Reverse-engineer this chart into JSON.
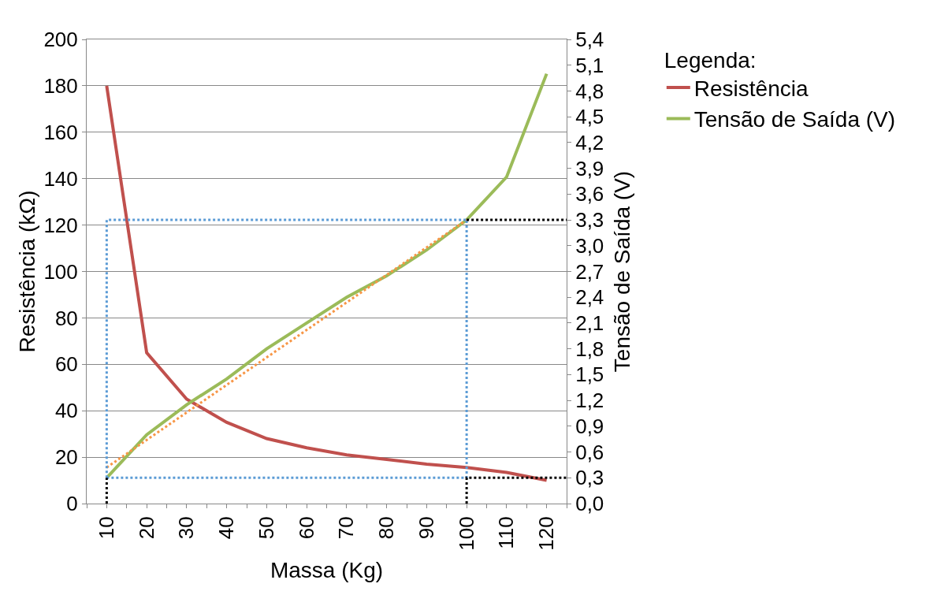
{
  "chart_data": {
    "type": "line",
    "xlabel": "Massa (Kg)",
    "ylabel": "Resistência (kΩ)",
    "y2label": "Tensão de Saída (V)",
    "legend_title": "Legenda:",
    "legend": "top right",
    "grid": "y",
    "marker": "none",
    "x": [
      10,
      20,
      30,
      40,
      50,
      60,
      70,
      80,
      90,
      100,
      110,
      120
    ],
    "xlim": [
      5,
      125
    ],
    "xticks": [
      {
        "value": 5,
        "label": null
      },
      10,
      {
        "value": 15,
        "label": null
      },
      20,
      {
        "value": 25,
        "label": null
      },
      30,
      {
        "value": 35,
        "label": null
      },
      40,
      {
        "value": 45,
        "label": null
      },
      50,
      {
        "value": 55,
        "label": null
      },
      60,
      {
        "value": 65,
        "label": null
      },
      70,
      {
        "value": 75,
        "label": null
      },
      80,
      {
        "value": 85,
        "label": null
      },
      90,
      {
        "value": 95,
        "label": null
      },
      100,
      {
        "value": 105,
        "label": null
      },
      110,
      {
        "value": 115,
        "label": null
      },
      120,
      {
        "value": 125,
        "label": null
      }
    ],
    "ylim": [
      0,
      200
    ],
    "yticks": [
      0,
      20,
      40,
      60,
      80,
      100,
      120,
      140,
      160,
      180,
      200
    ],
    "y2lim": [
      0,
      5.4
    ],
    "y2ticks": [
      {
        "value": 0,
        "label": "0,0"
      },
      {
        "value": 0.3,
        "label": "0,3"
      },
      {
        "value": 0.6,
        "label": "0,6"
      },
      {
        "value": 0.9,
        "label": "0,9"
      },
      {
        "value": 1.2,
        "label": "1,2"
      },
      {
        "value": 1.5,
        "label": "1,5"
      },
      {
        "value": 1.8,
        "label": "1,8"
      },
      {
        "value": 2.1,
        "label": "2,1"
      },
      {
        "value": 2.4,
        "label": "2,4"
      },
      {
        "value": 2.7,
        "label": "2,7"
      },
      {
        "value": 3.0,
        "label": "3,0"
      },
      {
        "value": 3.3,
        "label": "3,3"
      },
      {
        "value": 3.6,
        "label": "3,6"
      },
      {
        "value": 3.9,
        "label": "3,9"
      },
      {
        "value": 4.2,
        "label": "4,2"
      },
      {
        "value": 4.5,
        "label": "4,5"
      },
      {
        "value": 4.8,
        "label": "4,8"
      },
      {
        "value": 5.1,
        "label": "5,1"
      },
      {
        "value": 5.4,
        "label": "5,4"
      }
    ],
    "series": [
      {
        "name": "Resistência",
        "color": "#c0504d",
        "line_style": "solid",
        "values": [
          180,
          65,
          45,
          35,
          28,
          24,
          21,
          19,
          17,
          15.5,
          13.4,
          10
        ]
      },
      {
        "name": "Tensão de Saída (V)",
        "color": "#9bbb59",
        "axis": "y2",
        "line_style": "solid",
        "values": [
          0.3,
          0.8,
          1.15,
          1.45,
          1.8,
          2.1,
          2.4,
          2.65,
          2.95,
          3.3,
          3.8,
          5.0
        ]
      },
      {
        "color": "#f79646",
        "axis": "y2",
        "line_style": "dotted",
        "x": [
          10,
          100
        ],
        "values": [
          0.42,
          3.3
        ]
      },
      {
        "color": "#5b9bd5",
        "axis": "y2",
        "line_style": "dotted",
        "x": [
          10,
          10,
          100
        ],
        "values": [
          0.3,
          3.3,
          3.3
        ]
      },
      {
        "color": "#5b9bd5",
        "axis": "y2",
        "line_style": "dotted",
        "x": [
          10,
          100,
          100
        ],
        "values": [
          0.3,
          0.3,
          3.3
        ]
      },
      {
        "color": "#000000",
        "axis": "y2",
        "line_style": "dotted",
        "x": [
          10,
          10
        ],
        "values": [
          0,
          0.3
        ]
      },
      {
        "color": "#000000",
        "axis": "y2",
        "line_style": "dotted",
        "x": [
          100,
          100,
          125
        ],
        "values": [
          0,
          0.3,
          0.3
        ]
      },
      {
        "color": "#000000",
        "axis": "y2",
        "line_style": "dotted",
        "x": [
          100,
          125
        ],
        "values": [
          3.3,
          3.3
        ]
      }
    ]
  }
}
